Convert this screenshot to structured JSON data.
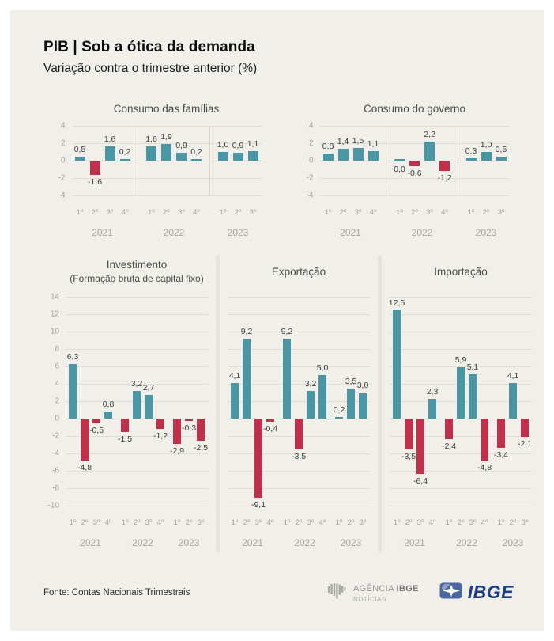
{
  "header": {
    "title": "PIB | Sob a ótica da demanda",
    "subtitle": "Variação contra o trimestre anterior (%)"
  },
  "quarters": [
    "1º",
    "2º",
    "3º",
    "4º"
  ],
  "colors": {
    "positive_bar": "#4b96a5",
    "negative_bar": "#c1304a",
    "card_background": "#f0efea",
    "grid": "#dfded8",
    "ibge_blue": "#203e86"
  },
  "chart_data": [
    {
      "type": "bar",
      "panel": "top",
      "title": "Consumo das famílias",
      "subtitle": "",
      "ylabel": "",
      "ylim": [
        -4,
        4
      ],
      "yticks": [
        4,
        2,
        0,
        -2,
        -4
      ],
      "groups": [
        {
          "year": "2021",
          "values": [
            0.5,
            -1.6,
            1.6,
            0.2
          ]
        },
        {
          "year": "2022",
          "values": [
            1.6,
            1.9,
            0.9,
            0.2
          ]
        },
        {
          "year": "2023",
          "values": [
            1.0,
            0.9,
            1.1
          ]
        }
      ]
    },
    {
      "type": "bar",
      "panel": "top",
      "title": "Consumo do governo",
      "subtitle": "",
      "ylabel": "",
      "ylim": [
        -4,
        4
      ],
      "yticks": [
        4,
        2,
        0,
        -2,
        -4
      ],
      "groups": [
        {
          "year": "2021",
          "values": [
            0.8,
            1.4,
            1.5,
            1.1
          ]
        },
        {
          "year": "2022",
          "values": [
            0.0,
            -0.6,
            2.2,
            -1.2
          ]
        },
        {
          "year": "2023",
          "values": [
            0.3,
            1.0,
            0.5
          ]
        }
      ]
    },
    {
      "type": "bar",
      "panel": "bottom",
      "title": "Investimento",
      "subtitle": "(Formação bruta de capital fixo)",
      "ylabel": "",
      "ylim": [
        -10,
        14
      ],
      "yticks": [
        14,
        12,
        10,
        8,
        6,
        4,
        2,
        0,
        -2,
        -4,
        -6,
        -8,
        -10
      ],
      "groups": [
        {
          "year": "2021",
          "values": [
            6.3,
            -4.8,
            -0.5,
            0.8
          ]
        },
        {
          "year": "2022",
          "values": [
            -1.5,
            3.2,
            2.7,
            -1.2
          ]
        },
        {
          "year": "2023",
          "values": [
            -2.9,
            -0.3,
            -2.5
          ]
        }
      ]
    },
    {
      "type": "bar",
      "panel": "bottom",
      "title": "Exportação",
      "subtitle": "",
      "ylabel": "",
      "ylim": [
        -10,
        14
      ],
      "yticks": [
        14,
        12,
        10,
        8,
        6,
        4,
        2,
        0,
        -2,
        -4,
        -6,
        -8,
        -10
      ],
      "groups": [
        {
          "year": "2021",
          "values": [
            4.1,
            9.2,
            -9.1,
            -0.4
          ]
        },
        {
          "year": "2022",
          "values": [
            9.2,
            -3.5,
            3.2,
            5.0
          ]
        },
        {
          "year": "2023",
          "values": [
            0.2,
            3.5,
            3.0
          ]
        }
      ]
    },
    {
      "type": "bar",
      "panel": "bottom",
      "title": "Importação",
      "subtitle": "",
      "ylabel": "",
      "ylim": [
        -10,
        14
      ],
      "yticks": [
        14,
        12,
        10,
        8,
        6,
        4,
        2,
        0,
        -2,
        -4,
        -6,
        -8,
        -10
      ],
      "groups": [
        {
          "year": "2021",
          "values": [
            12.5,
            -3.5,
            -6.4,
            2.3
          ]
        },
        {
          "year": "2022",
          "values": [
            -2.4,
            5.9,
            5.1,
            -4.8
          ]
        },
        {
          "year": "2023",
          "values": [
            -3.4,
            4.1,
            -2.1
          ]
        }
      ]
    }
  ],
  "footer": {
    "source": "Fonte: Contas Nacionais Trimestrais",
    "agencia_logo": {
      "word1": "AGÊNCIA",
      "word2": "IBGE",
      "line2": "NOTÍCIAS"
    },
    "ibge_logo": "IBGE"
  }
}
